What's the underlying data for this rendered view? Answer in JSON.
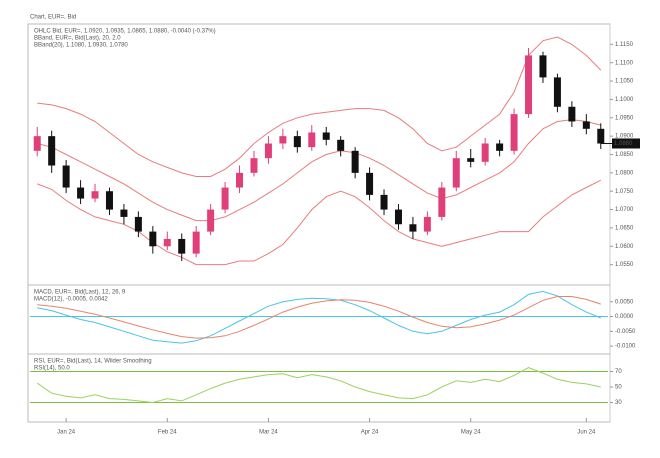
{
  "chart_data": [
    {
      "type": "candlestick",
      "title": "Chart, EUR=, Bid",
      "subtitles": [
        "OHLC Bid, EUR=, 1.0920, 1.0935, 1.0865, 1.0880, -0.0040 (-0.37%)",
        "BBand, EUR=, Bid(Last), 20, 2.0",
        "BBand(20), 1.1080, 1.0930, 1.0780"
      ],
      "subtitle_color": "#d03030",
      "up_color": "#e0407a",
      "down_color": "#111111",
      "ohlc": [
        [
          1.086,
          1.0925,
          1.0845,
          1.09
        ],
        [
          1.09,
          1.0915,
          1.08,
          1.082
        ],
        [
          1.082,
          1.0835,
          1.0745,
          1.076
        ],
        [
          1.076,
          1.078,
          1.0715,
          1.073
        ],
        [
          1.073,
          1.077,
          1.072,
          1.075
        ],
        [
          1.075,
          1.076,
          1.0685,
          1.07
        ],
        [
          1.07,
          1.0715,
          1.066,
          1.068
        ],
        [
          1.068,
          1.0695,
          1.0625,
          1.064
        ],
        [
          1.064,
          1.0655,
          1.058,
          1.06
        ],
        [
          1.06,
          1.064,
          1.059,
          1.062
        ],
        [
          1.062,
          1.0635,
          1.056,
          1.058
        ],
        [
          1.058,
          1.0655,
          1.057,
          1.064
        ],
        [
          1.064,
          1.0715,
          1.063,
          1.07
        ],
        [
          1.07,
          1.0775,
          1.069,
          1.076
        ],
        [
          1.076,
          1.082,
          1.0745,
          1.08
        ],
        [
          1.08,
          1.086,
          1.079,
          1.084
        ],
        [
          1.084,
          1.09,
          1.0825,
          1.088
        ],
        [
          1.088,
          1.092,
          1.0865,
          1.09
        ],
        [
          1.09,
          1.0915,
          1.0855,
          1.087
        ],
        [
          1.087,
          1.093,
          1.086,
          1.091
        ],
        [
          1.091,
          1.0925,
          1.0875,
          1.089
        ],
        [
          1.089,
          1.09,
          1.0845,
          1.086
        ],
        [
          1.086,
          1.087,
          1.0785,
          1.08
        ],
        [
          1.08,
          1.0815,
          1.0725,
          1.074
        ],
        [
          1.074,
          1.0755,
          1.0685,
          1.07
        ],
        [
          1.07,
          1.0715,
          1.0645,
          1.066
        ],
        [
          1.066,
          1.068,
          1.062,
          1.064
        ],
        [
          1.064,
          1.0695,
          1.063,
          1.068
        ],
        [
          1.068,
          1.0775,
          1.067,
          1.076
        ],
        [
          1.076,
          1.086,
          1.075,
          1.084
        ],
        [
          1.084,
          1.0865,
          1.0815,
          1.083
        ],
        [
          1.083,
          1.0895,
          1.082,
          1.088
        ],
        [
          1.088,
          1.089,
          1.0845,
          1.086
        ],
        [
          1.086,
          1.0975,
          1.085,
          1.096
        ],
        [
          1.096,
          1.114,
          1.095,
          1.112
        ],
        [
          1.112,
          1.113,
          1.1045,
          1.106
        ],
        [
          1.106,
          1.107,
          1.0965,
          1.098
        ],
        [
          1.098,
          1.0995,
          1.0925,
          1.094
        ],
        [
          1.094,
          1.096,
          1.0905,
          1.092
        ],
        [
          1.092,
          1.0935,
          1.0865,
          1.088
        ]
      ],
      "series": [
        {
          "name": "Upper",
          "color": "#e87c7c",
          "values": [
            1.099,
            1.0985,
            1.0975,
            1.096,
            1.094,
            1.091,
            1.088,
            1.085,
            1.083,
            1.0815,
            1.08,
            1.079,
            1.079,
            1.081,
            1.084,
            1.088,
            1.091,
            1.0935,
            1.095,
            1.096,
            1.0965,
            1.097,
            1.0975,
            1.0975,
            1.097,
            1.095,
            1.092,
            1.088,
            1.086,
            1.087,
            1.09,
            1.093,
            1.096,
            1.102,
            1.112,
            1.116,
            1.117,
            1.115,
            1.112,
            1.108
          ]
        },
        {
          "name": "Middle",
          "color": "#e87c7c",
          "values": [
            1.088,
            1.087,
            1.085,
            1.083,
            1.081,
            1.079,
            1.077,
            1.0745,
            1.072,
            1.07,
            1.0685,
            1.067,
            1.067,
            1.068,
            1.07,
            1.072,
            1.0745,
            1.077,
            1.08,
            1.083,
            1.085,
            1.086,
            1.0855,
            1.084,
            1.082,
            1.0795,
            1.077,
            1.0745,
            1.073,
            1.074,
            1.076,
            1.078,
            1.08,
            1.083,
            1.088,
            1.092,
            1.094,
            1.0945,
            1.094,
            1.093
          ]
        },
        {
          "name": "Lower",
          "color": "#e87c7c",
          "values": [
            1.077,
            1.0755,
            1.0725,
            1.07,
            1.068,
            1.067,
            1.066,
            1.064,
            1.061,
            1.0585,
            1.057,
            1.055,
            1.055,
            1.055,
            1.056,
            1.056,
            1.058,
            1.0605,
            1.065,
            1.07,
            1.0735,
            1.075,
            1.0735,
            1.0705,
            1.067,
            1.064,
            1.062,
            1.061,
            1.06,
            1.061,
            1.062,
            1.063,
            1.064,
            1.064,
            1.064,
            1.068,
            1.071,
            1.074,
            1.076,
            1.078
          ]
        }
      ],
      "ylim": [
        1.05,
        1.12
      ],
      "yticks": [
        {
          "value": 1.055,
          "label": "1.0550"
        },
        {
          "value": 1.06,
          "label": "1.0600"
        },
        {
          "value": 1.065,
          "label": "1.0650"
        },
        {
          "value": 1.07,
          "label": "1.0700"
        },
        {
          "value": 1.075,
          "label": "1.0750"
        },
        {
          "value": 1.08,
          "label": "1.0800"
        },
        {
          "value": 1.085,
          "label": "1.0850"
        },
        {
          "value": 1.09,
          "label": "1.0900"
        },
        {
          "value": 1.095,
          "label": "1.0950"
        },
        {
          "value": 1.1,
          "label": "1.1000"
        },
        {
          "value": 1.105,
          "label": "1.1050"
        },
        {
          "value": 1.11,
          "label": "1.1100"
        },
        {
          "value": 1.115,
          "label": "1.1150"
        }
      ],
      "last_price_label": "1.0880"
    },
    {
      "type": "line",
      "subtitles": [
        "MACD, EUR=, Bid(Last), 12, 26, 9",
        "MACD(12), -0.0005, 0.0042"
      ],
      "subtitle_color": "#3a8fd0",
      "series": [
        {
          "name": "MACD",
          "color": "#4cc3e8",
          "values": [
            0.003,
            0.002,
            0.0005,
            -0.001,
            -0.002,
            -0.0035,
            -0.005,
            -0.0065,
            -0.008,
            -0.0085,
            -0.009,
            -0.0082,
            -0.0065,
            -0.004,
            -0.0015,
            0.001,
            0.0035,
            0.005,
            0.0058,
            0.0062,
            0.006,
            0.0055,
            0.004,
            0.002,
            -0.0005,
            -0.003,
            -0.005,
            -0.0058,
            -0.005,
            -0.003,
            -0.001,
            0.0005,
            0.0015,
            0.004,
            0.0075,
            0.0085,
            0.007,
            0.004,
            0.0015,
            -0.0005
          ]
        },
        {
          "name": "Signal",
          "color": "#e8836a",
          "values": [
            0.004,
            0.0035,
            0.0028,
            0.0018,
            0.0008,
            -0.0005,
            -0.0018,
            -0.0032,
            -0.0045,
            -0.0057,
            -0.0068,
            -0.0073,
            -0.0072,
            -0.0065,
            -0.005,
            -0.003,
            -0.0008,
            0.0015,
            0.0032,
            0.0045,
            0.0053,
            0.0057,
            0.0055,
            0.0048,
            0.0035,
            0.0018,
            -0.0002,
            -0.002,
            -0.0033,
            -0.0038,
            -0.0035,
            -0.0025,
            -0.0012,
            0.0005,
            0.003,
            0.0055,
            0.0068,
            0.0068,
            0.0058,
            0.0042
          ]
        }
      ],
      "hlines": [
        0
      ],
      "hline_color": "#4cc3e8",
      "ylim": [
        -0.012,
        0.01
      ],
      "yticks": [
        {
          "value": -0.01,
          "label": "-0.0100"
        },
        {
          "value": -0.005,
          "label": "-0.0050"
        },
        {
          "value": 0,
          "label": "0.0000"
        },
        {
          "value": 0.005,
          "label": "0.0050"
        }
      ]
    },
    {
      "type": "line",
      "subtitles": [
        "RSI, EUR=, Bid(Last), 14, Wilder Smoothing",
        "RSI(14), 50.0"
      ],
      "subtitle_color": "#6aa83a",
      "series": [
        {
          "name": "RSI",
          "color": "#9ad35a",
          "values": [
            55,
            42,
            38,
            36,
            40,
            35,
            34,
            32,
            30,
            35,
            32,
            40,
            48,
            55,
            60,
            63,
            66,
            67,
            62,
            66,
            63,
            58,
            50,
            44,
            40,
            36,
            35,
            40,
            50,
            58,
            56,
            60,
            57,
            65,
            75,
            68,
            60,
            56,
            54,
            50
          ]
        }
      ],
      "hlines": [
        30,
        70
      ],
      "hline_color": "#7bc043",
      "ylim": [
        10,
        90
      ],
      "yticks": [
        30,
        50,
        70
      ],
      "categories": [
        null,
        null,
        "Jan 24",
        null,
        null,
        null,
        null,
        null,
        null,
        "Feb 24",
        null,
        null,
        null,
        null,
        null,
        null,
        "Mar 24",
        null,
        null,
        null,
        null,
        null,
        null,
        "Apr 24",
        null,
        null,
        null,
        null,
        null,
        null,
        "May 24",
        null,
        null,
        null,
        null,
        null,
        null,
        null,
        "Jun 24",
        null
      ]
    }
  ]
}
